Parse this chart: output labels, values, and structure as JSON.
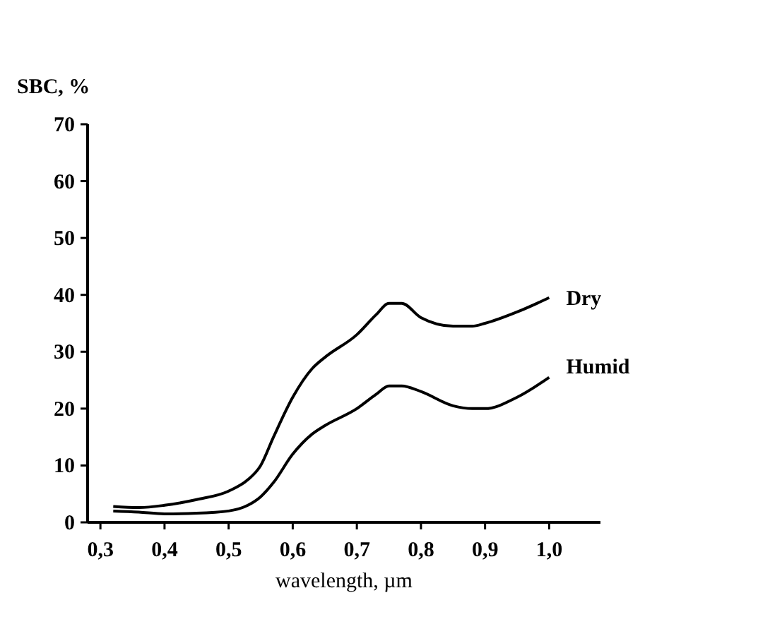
{
  "chart_data": {
    "type": "line",
    "ylabel": "SBC, %",
    "xlabel": "wavelength, µm",
    "xlim": [
      0.28,
      1.08
    ],
    "ylim": [
      0,
      70
    ],
    "xticks": [
      {
        "value": 0.3,
        "label": "0,3"
      },
      {
        "value": 0.4,
        "label": "0,4"
      },
      {
        "value": 0.5,
        "label": "0,5"
      },
      {
        "value": 0.6,
        "label": "0,6"
      },
      {
        "value": 0.7,
        "label": "0,7"
      },
      {
        "value": 0.8,
        "label": "0,8"
      },
      {
        "value": 0.9,
        "label": "0,9"
      },
      {
        "value": 1.0,
        "label": "1,0"
      }
    ],
    "yticks": [
      0,
      10,
      20,
      30,
      40,
      50,
      60,
      70
    ],
    "marker": "none",
    "line_style": "solid",
    "grid": false,
    "legend": false,
    "series": [
      {
        "name": "Dry",
        "color": "#000000",
        "x": [
          0.32,
          0.36,
          0.4,
          0.45,
          0.5,
          0.53,
          0.55,
          0.57,
          0.6,
          0.63,
          0.65,
          0.7,
          0.73,
          0.75,
          0.77,
          0.8,
          0.85,
          0.88,
          0.9,
          0.95,
          1.0
        ],
        "values": [
          2.8,
          2.6,
          3,
          4,
          5.5,
          7.5,
          10,
          15,
          22,
          27,
          29,
          33,
          36.5,
          38.5,
          38.5,
          36,
          34.5,
          34.5,
          35,
          37,
          39.5
        ]
      },
      {
        "name": "Humid",
        "color": "#000000",
        "x": [
          0.32,
          0.36,
          0.4,
          0.45,
          0.5,
          0.53,
          0.55,
          0.57,
          0.6,
          0.63,
          0.65,
          0.7,
          0.73,
          0.75,
          0.77,
          0.8,
          0.85,
          0.88,
          0.9,
          0.95,
          1.0
        ],
        "values": [
          2,
          1.8,
          1.5,
          1.6,
          2,
          3,
          4.5,
          7,
          12,
          15.5,
          17,
          20,
          22.5,
          24,
          24,
          23,
          20.5,
          20,
          20,
          22,
          25.5
        ]
      }
    ]
  }
}
